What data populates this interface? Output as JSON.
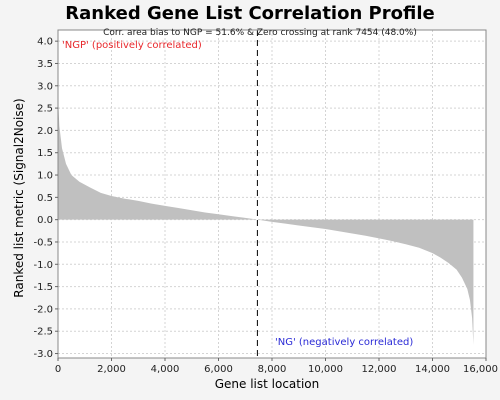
{
  "chart_data": {
    "type": "area",
    "title": "Ranked Gene List Correlation Profile",
    "subtitle": "Corr. area bias to NGP = 51.6% & Zero crossing at rank 7454 (48.0%)",
    "xlabel": "Gene list location",
    "ylabel": "Ranked list metric (Signal2Noise)",
    "xlim": [
      0,
      16000
    ],
    "ylim": [
      -3.1,
      4.25
    ],
    "xticks": [
      0,
      2000,
      4000,
      6000,
      8000,
      10000,
      12000,
      14000,
      16000
    ],
    "xtick_labels": [
      "0",
      "2,000",
      "4,000",
      "6,000",
      "8,000",
      "10,000",
      "12,000",
      "14,000",
      "16,000"
    ],
    "yticks": [
      4.0,
      3.5,
      3.0,
      2.5,
      2.0,
      1.5,
      1.0,
      0.5,
      0.0,
      -0.5,
      -1.0,
      -1.5,
      -2.0,
      -2.5,
      -3.0
    ],
    "ytick_labels": [
      "4.0",
      "3.5",
      "3.0",
      "2.5",
      "2.0",
      "1.5",
      "1.0",
      "0.5",
      "0.0",
      "-0.5",
      "-1.0",
      "-1.5",
      "-2.0",
      "-2.5",
      "-3.0"
    ],
    "grid": true,
    "zero_crossing_rank": 7454,
    "total_genes": 15530,
    "fill_color": "#c0c0c0",
    "profile": {
      "x": [
        0,
        50,
        150,
        300,
        500,
        800,
        1200,
        1600,
        2000,
        2500,
        3000,
        3500,
        4000,
        4500,
        5000,
        5500,
        6000,
        6500,
        7000,
        7454,
        8000,
        8500,
        9000,
        9500,
        10000,
        10500,
        11000,
        11500,
        12000,
        12500,
        13000,
        13500,
        14000,
        14300,
        14600,
        14900,
        15100,
        15300,
        15400,
        15480,
        15530
      ],
      "y": [
        2.75,
        2.1,
        1.6,
        1.25,
        1.0,
        0.85,
        0.72,
        0.6,
        0.53,
        0.47,
        0.42,
        0.36,
        0.31,
        0.26,
        0.21,
        0.16,
        0.12,
        0.08,
        0.04,
        0.0,
        -0.05,
        -0.09,
        -0.13,
        -0.17,
        -0.21,
        -0.26,
        -0.31,
        -0.36,
        -0.42,
        -0.48,
        -0.55,
        -0.63,
        -0.75,
        -0.85,
        -0.97,
        -1.12,
        -1.3,
        -1.55,
        -1.8,
        -2.2,
        -2.8
      ]
    },
    "annotations": [
      {
        "text": "'NGP' (positively correlated)",
        "color": "#e8282c",
        "position": "top-left"
      },
      {
        "text": "'NG' (negatively correlated)",
        "color": "#2a2ad6",
        "position": "bottom-right"
      }
    ]
  }
}
